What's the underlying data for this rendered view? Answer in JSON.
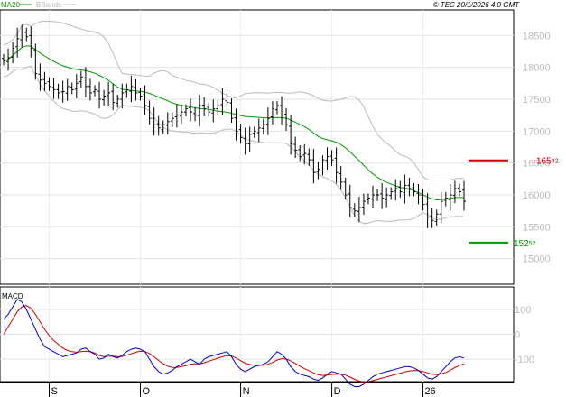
{
  "header": {
    "legend": [
      {
        "name": "MA20",
        "color": "#009900"
      },
      {
        "name": "BBands",
        "color": "#bbbbbb"
      }
    ],
    "copyright": "© TEC 20/1/2026 4:0 GMT"
  },
  "macd_label": "MACD",
  "levels": {
    "resistance": {
      "value_main": "165",
      "value_decimals": "42",
      "price": 16542,
      "color": "#cc0000"
    },
    "support": {
      "value_main": "152",
      "value_decimals": "52",
      "price": 15252,
      "color": "#009900"
    }
  },
  "chart_data": [
    {
      "type": "bar",
      "subtype": "ohlc",
      "ylim": [
        14600,
        18900
      ],
      "yticks": [
        "18500",
        "18000",
        "17500",
        "17000",
        "16500",
        "16000",
        "15500",
        "15000"
      ],
      "ytick_values": [
        18500,
        18000,
        17500,
        17000,
        16500,
        16000,
        15500,
        15000
      ],
      "xtick_labels": [
        "S",
        "O",
        "N",
        "D",
        "26"
      ],
      "xtick_bar_index": [
        10,
        30,
        52,
        72,
        92
      ],
      "bar_count": 102,
      "closes": [
        18100,
        18150,
        18300,
        18450,
        18550,
        18480,
        18300,
        17900,
        17800,
        17750,
        17700,
        17650,
        17600,
        17620,
        17700,
        17650,
        17750,
        17850,
        17700,
        17600,
        17650,
        17500,
        17550,
        17600,
        17450,
        17500,
        17600,
        17650,
        17700,
        17600,
        17550,
        17400,
        17200,
        17100,
        17050,
        17100,
        17150,
        17200,
        17250,
        17300,
        17350,
        17300,
        17250,
        17400,
        17350,
        17300,
        17350,
        17400,
        17500,
        17450,
        17200,
        17000,
        16900,
        16800,
        16950,
        17000,
        17050,
        17100,
        17200,
        17350,
        17400,
        17250,
        17100,
        16800,
        16700,
        16600,
        16650,
        16550,
        16350,
        16400,
        16550,
        16600,
        16550,
        16350,
        16200,
        16000,
        15800,
        15750,
        15800,
        15900,
        15950,
        16000,
        16000,
        15950,
        16000,
        16050,
        16100,
        16050,
        16150,
        16100,
        16050,
        16000,
        15850,
        15650,
        15600,
        15700,
        15900,
        15950,
        16000,
        16100,
        16050,
        15900
      ],
      "bands": {
        "ma20": "#009900",
        "bbands": "#bbbbbb"
      }
    },
    {
      "type": "line",
      "title": "MACD",
      "ylim": [
        -190,
        190
      ],
      "yticks": [
        "100",
        "0",
        "-100"
      ],
      "ytick_values": [
        100,
        0,
        -100
      ],
      "series": [
        {
          "color": "#0000cc",
          "values": [
            60,
            80,
            110,
            140,
            130,
            100,
            60,
            20,
            -20,
            -50,
            -60,
            -70,
            -80,
            -90,
            -85,
            -80,
            -75,
            -60,
            -55,
            -70,
            -80,
            -100,
            -95,
            -80,
            -90,
            -95,
            -85,
            -70,
            -60,
            -55,
            -60,
            -70,
            -100,
            -130,
            -150,
            -160,
            -155,
            -145,
            -130,
            -120,
            -110,
            -100,
            -110,
            -120,
            -100,
            -90,
            -85,
            -80,
            -75,
            -70,
            -90,
            -120,
            -140,
            -150,
            -140,
            -130,
            -125,
            -120,
            -110,
            -90,
            -70,
            -80,
            -100,
            -130,
            -150,
            -160,
            -165,
            -170,
            -180,
            -185,
            -175,
            -160,
            -150,
            -155,
            -160,
            -180,
            -200,
            -210,
            -210,
            -200,
            -185,
            -170,
            -160,
            -155,
            -150,
            -145,
            -140,
            -135,
            -130,
            -130,
            -135,
            -145,
            -160,
            -175,
            -180,
            -170,
            -150,
            -130,
            -110,
            -95,
            -90,
            -95
          ]
        },
        {
          "color": "#cc0000",
          "values": [
            0,
            30,
            60,
            90,
            110,
            115,
            105,
            80,
            50,
            20,
            -5,
            -25,
            -40,
            -55,
            -65,
            -70,
            -72,
            -70,
            -68,
            -70,
            -75,
            -85,
            -90,
            -88,
            -88,
            -90,
            -89,
            -84,
            -78,
            -72,
            -68,
            -69,
            -77,
            -90,
            -105,
            -118,
            -128,
            -133,
            -133,
            -130,
            -126,
            -120,
            -118,
            -119,
            -114,
            -108,
            -102,
            -96,
            -90,
            -86,
            -87,
            -95,
            -106,
            -116,
            -121,
            -124,
            -125,
            -124,
            -120,
            -113,
            -103,
            -98,
            -99,
            -107,
            -117,
            -128,
            -138,
            -146,
            -155,
            -162,
            -165,
            -164,
            -161,
            -160,
            -160,
            -164,
            -172,
            -181,
            -188,
            -191,
            -190,
            -186,
            -181,
            -176,
            -171,
            -166,
            -161,
            -156,
            -151,
            -147,
            -145,
            -146,
            -149,
            -155,
            -160,
            -162,
            -159,
            -153,
            -144,
            -134,
            -125,
            -119
          ]
        }
      ]
    }
  ]
}
